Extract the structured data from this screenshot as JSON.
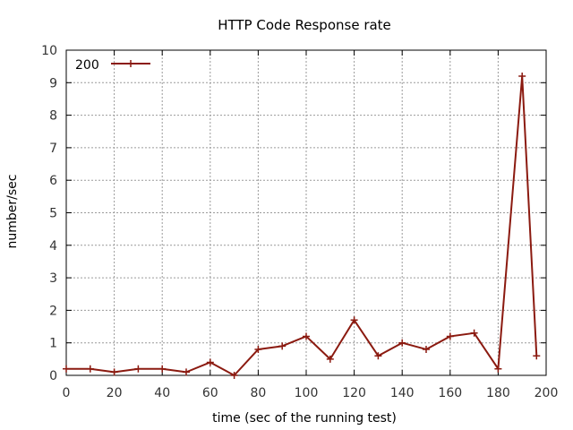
{
  "chart_data": {
    "type": "line",
    "title": "HTTP Code Response rate",
    "xlabel": "time (sec of the running test)",
    "ylabel": "number/sec",
    "xlim": [
      0,
      200
    ],
    "ylim": [
      0,
      10
    ],
    "xticks": [
      0,
      20,
      40,
      60,
      80,
      100,
      120,
      140,
      160,
      180,
      200
    ],
    "yticks": [
      0,
      1,
      2,
      3,
      4,
      5,
      6,
      7,
      8,
      9,
      10
    ],
    "grid": true,
    "legend_position": "top-left",
    "series": [
      {
        "name": "200",
        "color": "#8b1a10",
        "x": [
          0,
          10,
          20,
          30,
          40,
          50,
          60,
          70,
          80,
          90,
          100,
          110,
          120,
          130,
          140,
          150,
          160,
          170,
          180,
          190,
          196
        ],
        "y": [
          0.2,
          0.2,
          0.1,
          0.2,
          0.2,
          0.1,
          0.4,
          0.0,
          0.8,
          0.9,
          1.2,
          0.5,
          1.7,
          0.6,
          1.0,
          0.8,
          1.2,
          1.3,
          0.2,
          9.2,
          0.6
        ]
      }
    ]
  }
}
